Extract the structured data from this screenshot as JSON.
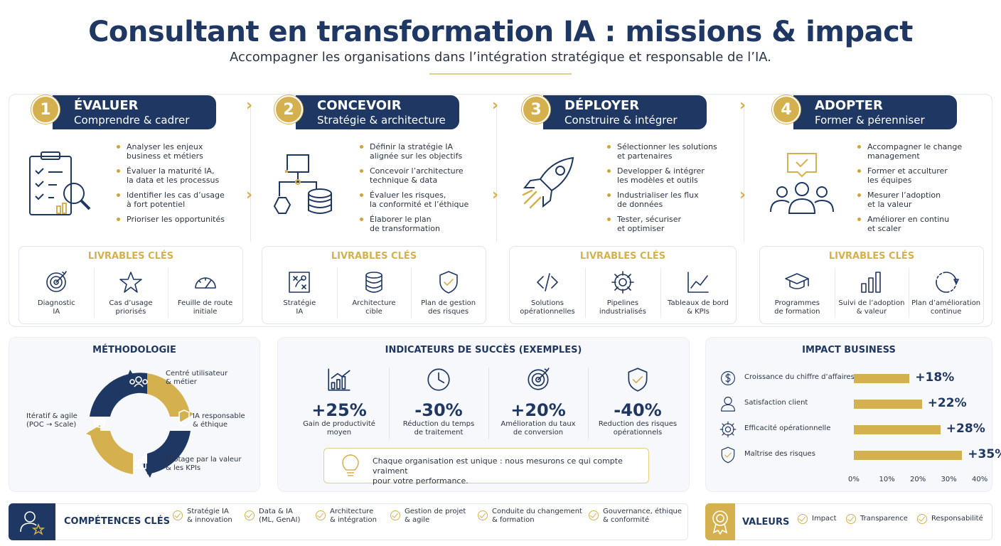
{
  "header": {
    "title": "Consultant en transformation IA : missions & impact",
    "subtitle": "Accompagner les organisations dans l’intégration stratégique et responsable de l’IA."
  },
  "colors": {
    "navy": "#1f3763",
    "gold": "#d4b14e"
  },
  "steps": [
    {
      "number": "1",
      "name": "ÉVALUER",
      "tagline": "Comprendre & cadrer",
      "icon": "clipboard-magnifier-icon",
      "bullets": [
        "Analyser les enjeux\nbusiness et métiers",
        "Évaluer la maturité IA,\nla data et les processus",
        "Identifier les cas d’usage\nà fort potentiel",
        "Prioriser les opportunités"
      ],
      "deliverables_title": "LIVRABLES CLÉS",
      "deliverables": [
        {
          "icon": "target-icon",
          "label": "Diagnostic\nIA"
        },
        {
          "icon": "star-icon",
          "label": "Cas d’usage\npriorisés"
        },
        {
          "icon": "gauge-icon",
          "label": "Feuille de route\ninitiale"
        }
      ]
    },
    {
      "number": "2",
      "name": "CONCEVOIR",
      "tagline": "Stratégie & architecture",
      "icon": "architecture-flow-icon",
      "bullets": [
        "Définir la stratégie IA\nalignée sur les objectifs",
        "Concevoir l’architecture\ntechnique & data",
        "Évaluer les risques,\nla conformité et l’éthique",
        "Élaborer le plan\nde transformation"
      ],
      "deliverables_title": "LIVRABLES CLÉS",
      "deliverables": [
        {
          "icon": "strategy-board-icon",
          "label": "Stratégie\nIA"
        },
        {
          "icon": "database-icon",
          "label": "Architecture\ncible"
        },
        {
          "icon": "shield-check-icon",
          "label": "Plan de gestion\ndes risques"
        }
      ]
    },
    {
      "number": "3",
      "name": "DÉPLOYER",
      "tagline": "Construire & intégrer",
      "icon": "rocket-icon",
      "bullets": [
        "Sélectionner les solutions\net partenaires",
        "Developper & intégrer\nles modèles et outils",
        "Industrialiser les flux\nde données",
        "Tester, sécuriser\net optimiser"
      ],
      "deliverables_title": "LIVRABLES CLÉS",
      "deliverables": [
        {
          "icon": "code-icon",
          "label": "Solutions\nopérationnelles"
        },
        {
          "icon": "gear-icon",
          "label": "Pipelines\nindustrialisés"
        },
        {
          "icon": "line-chart-icon",
          "label": "Tableaux de bord\n& KPIs"
        }
      ]
    },
    {
      "number": "4",
      "name": "ADOPTER",
      "tagline": "Former & pérenniser",
      "icon": "team-chat-icon",
      "bullets": [
        "Accompagner le change\nmanagement",
        "Former et acculturer\nles équipes",
        "Mesurer l’adoption\net la valeur",
        "Améliorer en continu\net scaler"
      ],
      "deliverables_title": "LIVRABLES CLÉS",
      "deliverables": [
        {
          "icon": "graduation-cap-icon",
          "label": "Programmes\nde formation"
        },
        {
          "icon": "bar-chart-icon",
          "label": "Suivi de l’adoption\n& valeur"
        },
        {
          "icon": "cycle-icon",
          "label": "Plan d’amélioration\ncontinue"
        }
      ]
    }
  ],
  "methodology": {
    "title": "MÉTHODOLOGIE",
    "items": [
      "Centré utilisateur\n& métier",
      "IA responsable\n& éthique",
      "Pilotage par la valeur\n& les KPIs",
      "Itératif & agile\n(POC → Scale)"
    ]
  },
  "indicators": {
    "title": "INDICATEURS DE SUCCÈS (EXEMPLES)",
    "items": [
      {
        "icon": "growth-chart-icon",
        "value": "+25%",
        "label": "Gain de productivité\nmoyen"
      },
      {
        "icon": "clock-icon",
        "value": "-30%",
        "label": "Réduction du temps\nde traitement"
      },
      {
        "icon": "target-icon",
        "value": "+20%",
        "label": "Amélioration du taux\nde conversion"
      },
      {
        "icon": "shield-check-icon",
        "value": "-40%",
        "label": "Reduction des risques\nopérationnels"
      }
    ],
    "note": "Chaque organisation est unique : nous mesurons ce qui compte vraiment\npour votre performance."
  },
  "chart_data": {
    "type": "bar",
    "title": "IMPACT BUSINESS",
    "orientation": "horizontal",
    "categories": [
      "Croissance du chiffre d’affaires",
      "Satisfaction client",
      "Efficacité opérationnelle",
      "Maîtrise des risques"
    ],
    "values": [
      18,
      22,
      28,
      35
    ],
    "value_labels": [
      "+18%",
      "+22%",
      "+28%",
      "+35%"
    ],
    "icons": [
      "dollar-icon",
      "user-icon",
      "gear-icon",
      "shield-check-icon"
    ],
    "xlim": [
      0,
      40
    ],
    "xticks": [
      "0%",
      "10%",
      "20%",
      "30%",
      "40%"
    ]
  },
  "skills": {
    "title": "COMPÉTENCES CLÉS",
    "items": [
      "Stratégie IA\n& innovation",
      "Data & IA\n(ML, GenAI)",
      "Architecture\n& intégration",
      "Gestion de projet\n& agile",
      "Conduite du changement\n& formation",
      "Gouvernance, éthique\n& conformité"
    ]
  },
  "values": {
    "title": "VALEURS",
    "items": [
      "Impact",
      "Transparence",
      "Responsabilité"
    ]
  }
}
